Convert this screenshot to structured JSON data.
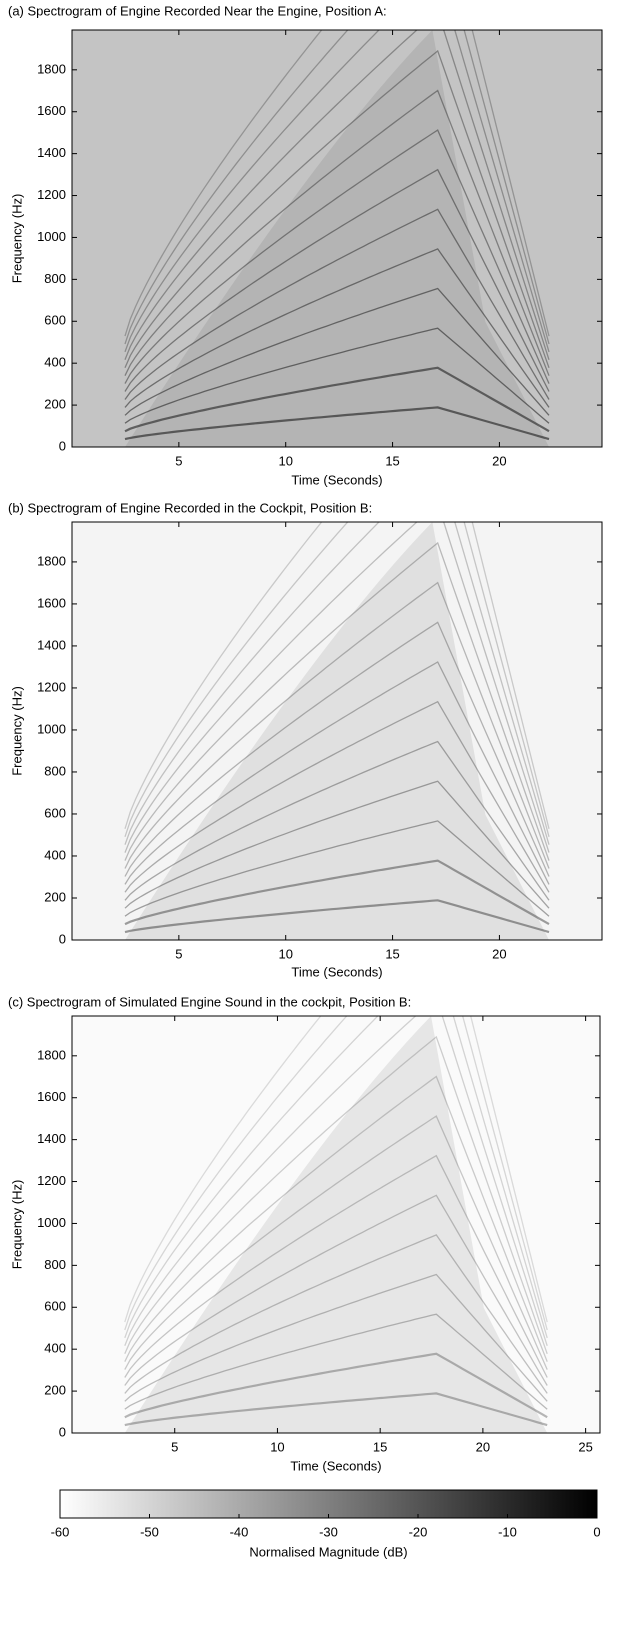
{
  "chart_data": [
    {
      "type": "spectrogram",
      "title": "(a) Spectrogram of Engine Recorded Near the Engine, Position A:",
      "xlabel": "Time (Seconds)",
      "ylabel": "Frequency (Hz)",
      "xlim": [
        0,
        24.8
      ],
      "ylim": [
        0,
        1990
      ],
      "xticks": [
        5,
        10,
        15,
        20
      ],
      "yticks": [
        0,
        200,
        400,
        600,
        800,
        1000,
        1200,
        1400,
        1600,
        1800
      ]
    },
    {
      "type": "spectrogram",
      "title": "(b) Spectrogram of Engine Recorded in the Cockpit, Position B:",
      "xlabel": "Time (Seconds)",
      "ylabel": "Frequency (Hz)",
      "xlim": [
        0,
        24.8
      ],
      "ylim": [
        0,
        1990
      ],
      "xticks": [
        5,
        10,
        15,
        20
      ],
      "yticks": [
        0,
        200,
        400,
        600,
        800,
        1000,
        1200,
        1400,
        1600,
        1800
      ]
    },
    {
      "type": "spectrogram",
      "title": "(c) Spectrogram of Simulated Engine Sound in the cockpit, Position B:",
      "xlabel": "Time (Seconds)",
      "ylabel": "Frequency (Hz)",
      "xlim": [
        0,
        25.7
      ],
      "ylim": [
        0,
        1990
      ],
      "xticks": [
        5,
        10,
        15,
        20,
        25
      ],
      "yticks": [
        0,
        200,
        400,
        600,
        800,
        1000,
        1200,
        1400,
        1600,
        1800
      ]
    },
    {
      "type": "colorbar",
      "xlabel": "Normalised Magnitude (dB)",
      "xlim": [
        -60,
        0
      ],
      "xticks": [
        -60,
        -50,
        -40,
        -30,
        -20,
        -10,
        0
      ],
      "colors": [
        "#ffffff",
        "#000000"
      ]
    }
  ]
}
